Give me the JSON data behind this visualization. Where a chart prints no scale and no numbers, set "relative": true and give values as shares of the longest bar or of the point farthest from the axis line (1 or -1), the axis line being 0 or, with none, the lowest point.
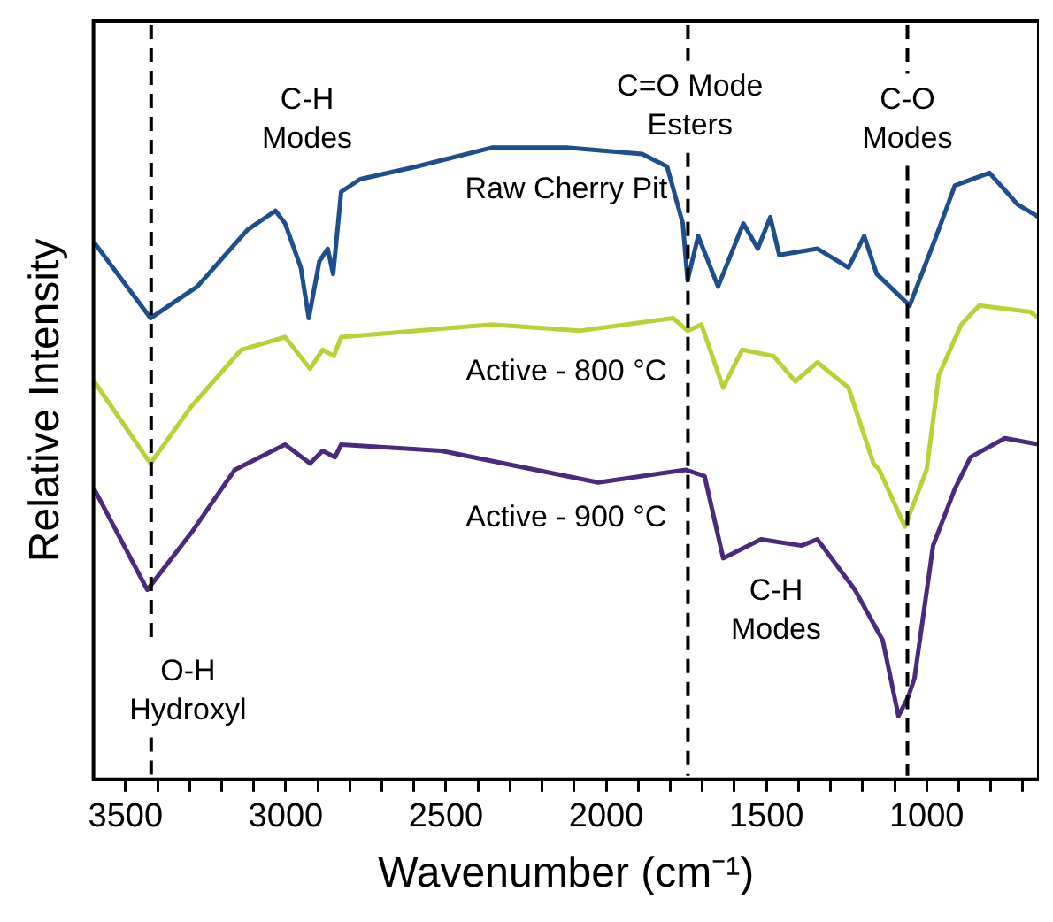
{
  "chart_data": {
    "type": "line",
    "relative": true,
    "xlabel": "Wavenumber (cm⁻¹)",
    "ylabel": "Relative Intensity",
    "xlim": [
      3600,
      650
    ],
    "xticks": [
      3500,
      {
        "value": 3400,
        "label": null
      },
      {
        "value": 3300,
        "label": null
      },
      {
        "value": 3200,
        "label": null
      },
      {
        "value": 3100,
        "label": null
      },
      3000,
      {
        "value": 2900,
        "label": null
      },
      {
        "value": 2800,
        "label": null
      },
      {
        "value": 2700,
        "label": null
      },
      {
        "value": 2600,
        "label": null
      },
      2500,
      {
        "value": 2400,
        "label": null
      },
      {
        "value": 2300,
        "label": null
      },
      {
        "value": 2200,
        "label": null
      },
      {
        "value": 2100,
        "label": null
      },
      2000,
      {
        "value": 1900,
        "label": null
      },
      {
        "value": 1800,
        "label": null
      },
      {
        "value": 1700,
        "label": null
      },
      {
        "value": 1600,
        "label": null
      },
      1500,
      {
        "value": 1400,
        "label": null
      },
      {
        "value": 1300,
        "label": null
      },
      {
        "value": 1200,
        "label": null
      },
      {
        "value": 1100,
        "label": null
      },
      1000,
      {
        "value": 900,
        "label": null
      },
      {
        "value": 800,
        "label": null
      },
      {
        "value": 700,
        "label": null
      }
    ],
    "legend": false,
    "grid": false,
    "marker": "none",
    "line_style": "solid",
    "series": [
      {
        "name": "Raw Cherry Pit",
        "color": "#1f4e8c",
        "x": [
          3598,
          3422,
          3276,
          3119,
          3032,
          3002,
          2953,
          2928,
          2895,
          2869,
          2852,
          2827,
          2768,
          2592,
          2357,
          2123,
          1888,
          1810,
          1761,
          1746,
          1713,
          1651,
          1572,
          1527,
          1488,
          1460,
          1341,
          1244,
          1195,
          1156,
          1053,
          970,
          912,
          804,
          716,
          650
        ],
        "values": [
          0.85,
          0.73,
          0.78,
          0.87,
          0.9,
          0.88,
          0.81,
          0.73,
          0.82,
          0.84,
          0.8,
          0.93,
          0.95,
          0.97,
          1,
          1,
          0.99,
          0.97,
          0.88,
          0.79,
          0.86,
          0.78,
          0.88,
          0.84,
          0.89,
          0.83,
          0.84,
          0.81,
          0.86,
          0.8,
          0.75,
          0.86,
          0.94,
          0.96,
          0.91,
          0.89
        ]
      },
      {
        "name": "Active - 800 °C",
        "color": "#b5d334",
        "x": [
          3598,
          3422,
          3295,
          3139,
          3002,
          2924,
          2885,
          2850,
          2827,
          2357,
          2084,
          1791,
          1746,
          1703,
          1635,
          1576,
          1478,
          1410,
          1341,
          1244,
          1166,
          1148,
          1068,
          1000,
          962,
          892,
          836,
          677,
          650
        ],
        "values": [
          0.63,
          0.5,
          0.59,
          0.68,
          0.7,
          0.65,
          0.68,
          0.67,
          0.7,
          0.72,
          0.71,
          0.73,
          0.71,
          0.72,
          0.62,
          0.68,
          0.67,
          0.63,
          0.66,
          0.62,
          0.5,
          0.49,
          0.4,
          0.49,
          0.64,
          0.72,
          0.75,
          0.74,
          0.73
        ]
      },
      {
        "name": "Active - 900 °C",
        "color": "#4b2a7e",
        "x": [
          3598,
          3432,
          3295,
          3159,
          3002,
          2924,
          2885,
          2846,
          2827,
          2515,
          2025,
          1752,
          1693,
          1635,
          1517,
          1391,
          1341,
          1224,
          1137,
          1088,
          1058,
          1038,
          980,
          912,
          863,
          756,
          650
        ],
        "values": [
          0.46,
          0.3,
          0.39,
          0.49,
          0.53,
          0.5,
          0.52,
          0.51,
          0.53,
          0.52,
          0.47,
          0.49,
          0.48,
          0.35,
          0.38,
          0.37,
          0.38,
          0.3,
          0.22,
          0.1,
          0.13,
          0.16,
          0.37,
          0.46,
          0.51,
          0.54,
          0.53
        ]
      }
    ],
    "ref_lines": [
      {
        "axis": "x",
        "value": 3420,
        "color": "#000000",
        "line_style": "dashed"
      },
      {
        "axis": "x",
        "value": 1745,
        "color": "#000000",
        "line_style": "dashed"
      },
      {
        "axis": "x",
        "value": 1060,
        "color": "#000000",
        "line_style": "dashed"
      }
    ],
    "annotations": [
      "C-H\nModes",
      "C=O Mode\nEsters",
      "C-O\nModes",
      "O-H\nHydroxyl",
      "C-H\nModes"
    ]
  }
}
